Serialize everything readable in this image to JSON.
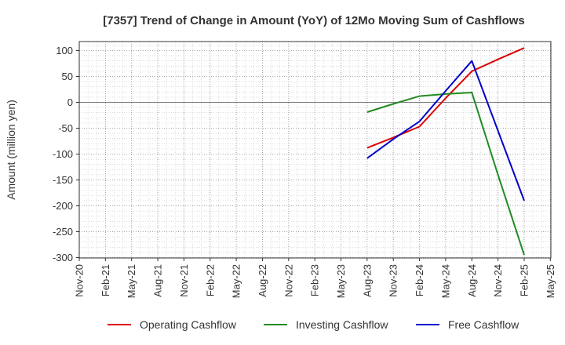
{
  "chart_data": {
    "type": "line",
    "title": "[7357]  Trend of Change in Amount (YoY) of 12Mo Moving Sum of Cashflows",
    "xlabel": "",
    "ylabel": "Amount (million yen)",
    "ylim": [
      -300,
      115
    ],
    "yticks": [
      100,
      50,
      0,
      -50,
      -100,
      -150,
      -200,
      -250,
      -300
    ],
    "grid": true,
    "legend_position": "bottom",
    "categories": [
      "Nov-20",
      "Feb-21",
      "May-21",
      "Aug-21",
      "Nov-21",
      "Feb-22",
      "May-22",
      "Aug-22",
      "Nov-22",
      "Feb-23",
      "May-23",
      "Aug-23",
      "Nov-23",
      "Feb-24",
      "May-24",
      "Aug-24",
      "Nov-24",
      "Feb-25",
      "May-25"
    ],
    "series": [
      {
        "name": "Operating Cashflow",
        "color": "#dd0000",
        "values": [
          null,
          null,
          null,
          null,
          null,
          null,
          null,
          null,
          null,
          null,
          null,
          -88,
          -68,
          -47,
          8,
          60,
          83,
          105,
          null
        ]
      },
      {
        "name": "Investing Cashflow",
        "color": "#228b22",
        "values": [
          null,
          null,
          null,
          null,
          null,
          null,
          null,
          null,
          null,
          null,
          null,
          -19,
          -3,
          12,
          16,
          19,
          -140,
          -295,
          null
        ]
      },
      {
        "name": "Free Cashflow",
        "color": "#0000cc",
        "values": [
          null,
          null,
          null,
          null,
          null,
          null,
          null,
          null,
          null,
          null,
          null,
          -108,
          -71,
          -37,
          22,
          80,
          -55,
          -190,
          null
        ]
      }
    ]
  }
}
